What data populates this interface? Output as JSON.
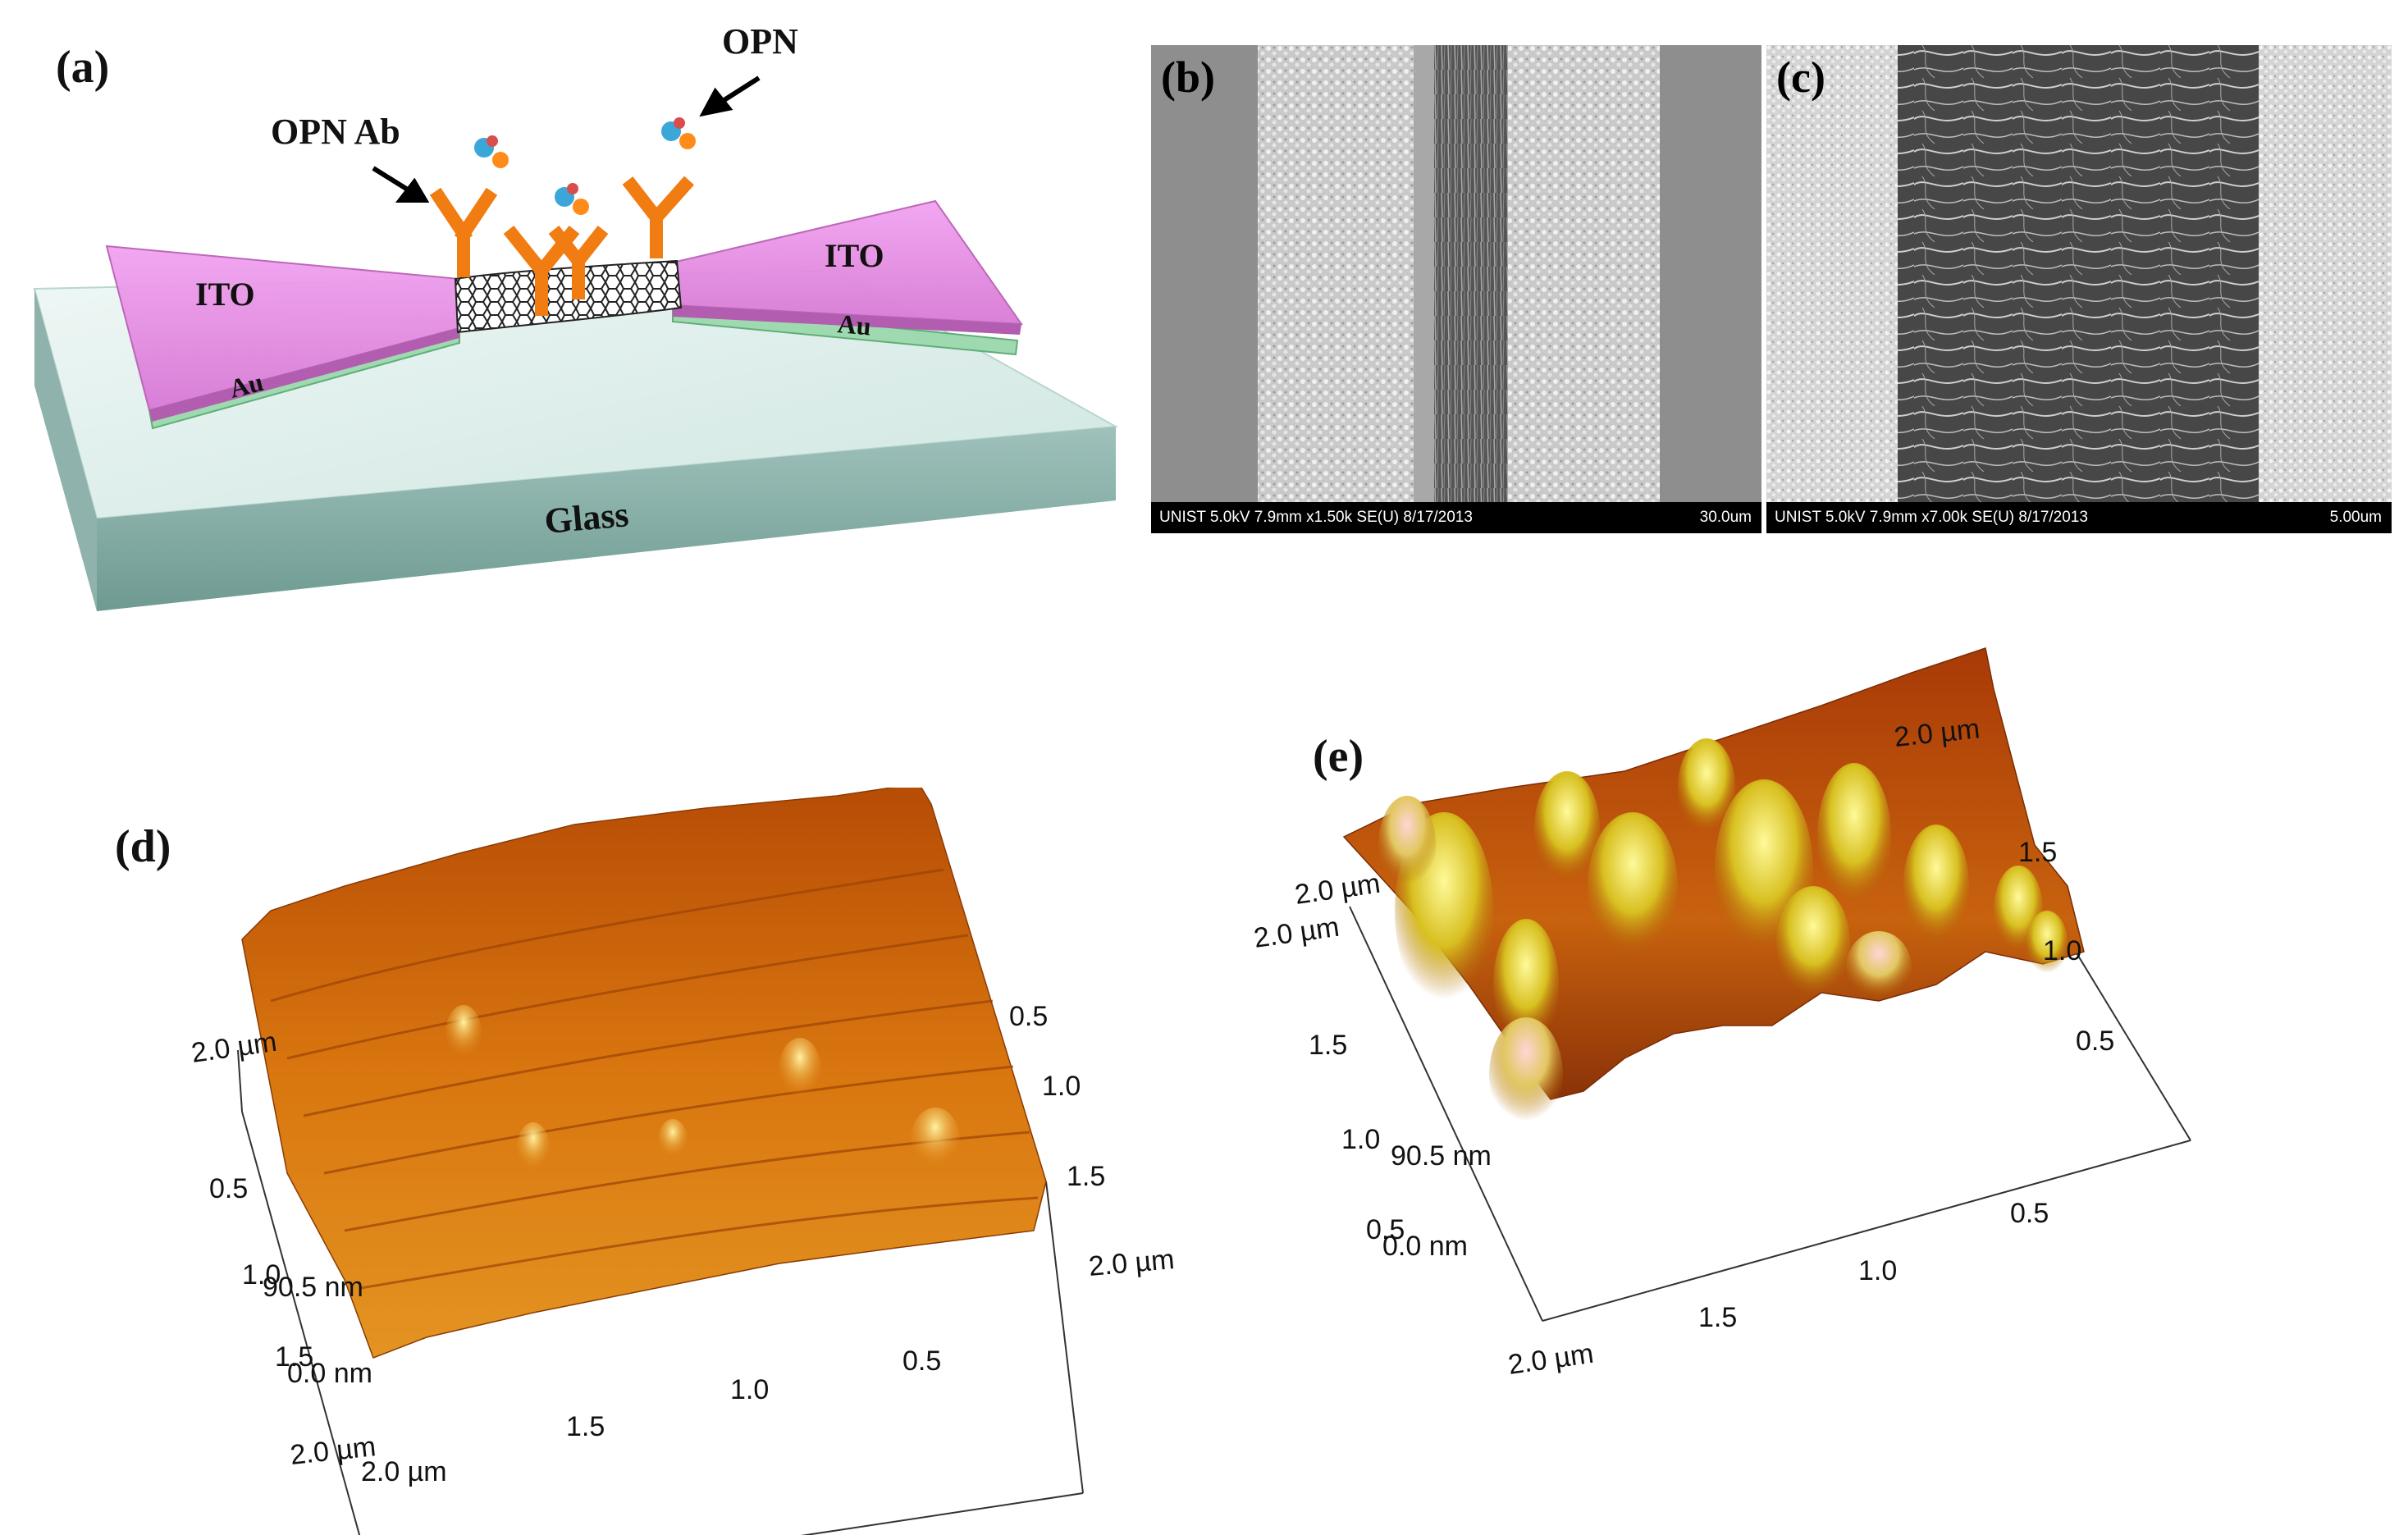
{
  "panel_a": {
    "label": "(a)",
    "opn_ab": "OPN Ab",
    "opn": "OPN",
    "ito_left": "ITO",
    "ito_right": "ITO",
    "au_left": "Au",
    "au_right": "Au",
    "glass": "Glass"
  },
  "panel_b": {
    "label": "(b)",
    "info": "UNIST 5.0kV 7.9mm x1.50k SE(U) 8/17/2013",
    "scale": "30.0um"
  },
  "panel_c": {
    "label": "(c)",
    "info": "UNIST 5.0kV 7.9mm x7.00k SE(U) 8/17/2013",
    "scale": "5.00um"
  },
  "panel_d": {
    "label": "(d)",
    "ticks": {
      "right_0_5": "0.5",
      "right_1_0": "1.0",
      "right_1_5": "1.5",
      "right_2_0": "2.0 µm",
      "left_2_0": "2.0 µm",
      "left_0_5": "0.5",
      "left_1_0": "1.0",
      "height": "90.5 nm",
      "left_1_5": "1.5",
      "zero": "0.0 nm",
      "bottom_0_5": "0.5",
      "bottom_1_0": "1.0",
      "bottom_1_5": "1.5",
      "bottom_2_0": "2.0 µm",
      "corner": "2.0 µm"
    }
  },
  "panel_e": {
    "label": "(e)",
    "ticks": {
      "top_2_0": "2.0 µm",
      "right_1_5": "1.5",
      "right_1_0": "1.0",
      "right_0_5": "0.5",
      "left_top": "2.0 µm",
      "left_2_0": "2.0 µm",
      "left_1_5": "1.5",
      "left_1_0": "1.0",
      "height": "90.5 nm",
      "left_0_5": "0.5",
      "zero": "0.0 nm",
      "bottom_0_5": "0.5",
      "bottom_1_0": "1.0",
      "bottom_1_5": "1.5",
      "bottom_2_0": "2.0 µm"
    }
  }
}
